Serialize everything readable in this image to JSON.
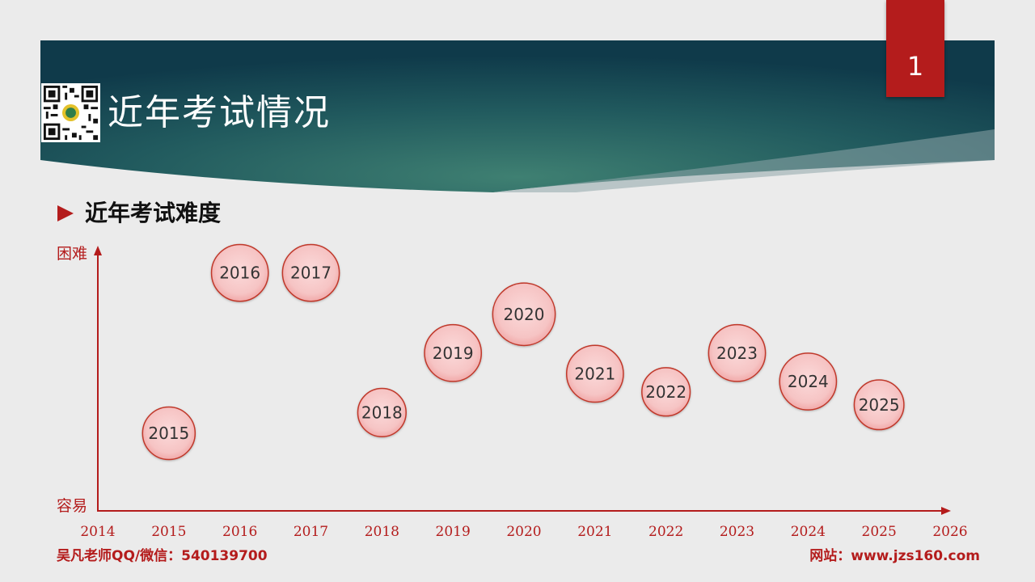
{
  "header": {
    "title": "近年考试情况",
    "page_number": "1"
  },
  "subtitle": "近年考试难度",
  "colors": {
    "accent": "#b41c1c",
    "banner_dark": "#0f3a4a",
    "banner_mid": "#3a7a70",
    "bubble_fill": "#f6c6c6",
    "bubble_stroke": "#c0392b"
  },
  "chart_data": {
    "type": "scatter",
    "title": "",
    "xlabel": "",
    "ylabel": "",
    "y_top_label": "困难",
    "y_bottom_label": "容易",
    "xlim": [
      2014,
      2026
    ],
    "ylim": [
      0,
      10
    ],
    "x_ticks": [
      "2014",
      "2015",
      "2016",
      "2017",
      "2018",
      "2019",
      "2020",
      "2021",
      "2022",
      "2023",
      "2024",
      "2025",
      "2026"
    ],
    "points": [
      {
        "x": 2015,
        "y": 3.0,
        "size": 0.74,
        "label": "2015"
      },
      {
        "x": 2016,
        "y": 9.2,
        "size": 0.8,
        "label": "2016"
      },
      {
        "x": 2017,
        "y": 9.2,
        "size": 0.8,
        "label": "2017"
      },
      {
        "x": 2018,
        "y": 3.8,
        "size": 0.68,
        "label": "2018"
      },
      {
        "x": 2019,
        "y": 6.1,
        "size": 0.8,
        "label": "2019"
      },
      {
        "x": 2020,
        "y": 7.6,
        "size": 0.88,
        "label": "2020"
      },
      {
        "x": 2021,
        "y": 5.3,
        "size": 0.8,
        "label": "2021"
      },
      {
        "x": 2022,
        "y": 4.6,
        "size": 0.68,
        "label": "2022"
      },
      {
        "x": 2023,
        "y": 6.1,
        "size": 0.8,
        "label": "2023"
      },
      {
        "x": 2024,
        "y": 5.0,
        "size": 0.8,
        "label": "2024"
      },
      {
        "x": 2025,
        "y": 4.1,
        "size": 0.7,
        "label": "2025"
      }
    ]
  },
  "footer": {
    "left": "吴凡老师QQ/微信：540139700",
    "right": "网站：www.jzs160.com"
  }
}
